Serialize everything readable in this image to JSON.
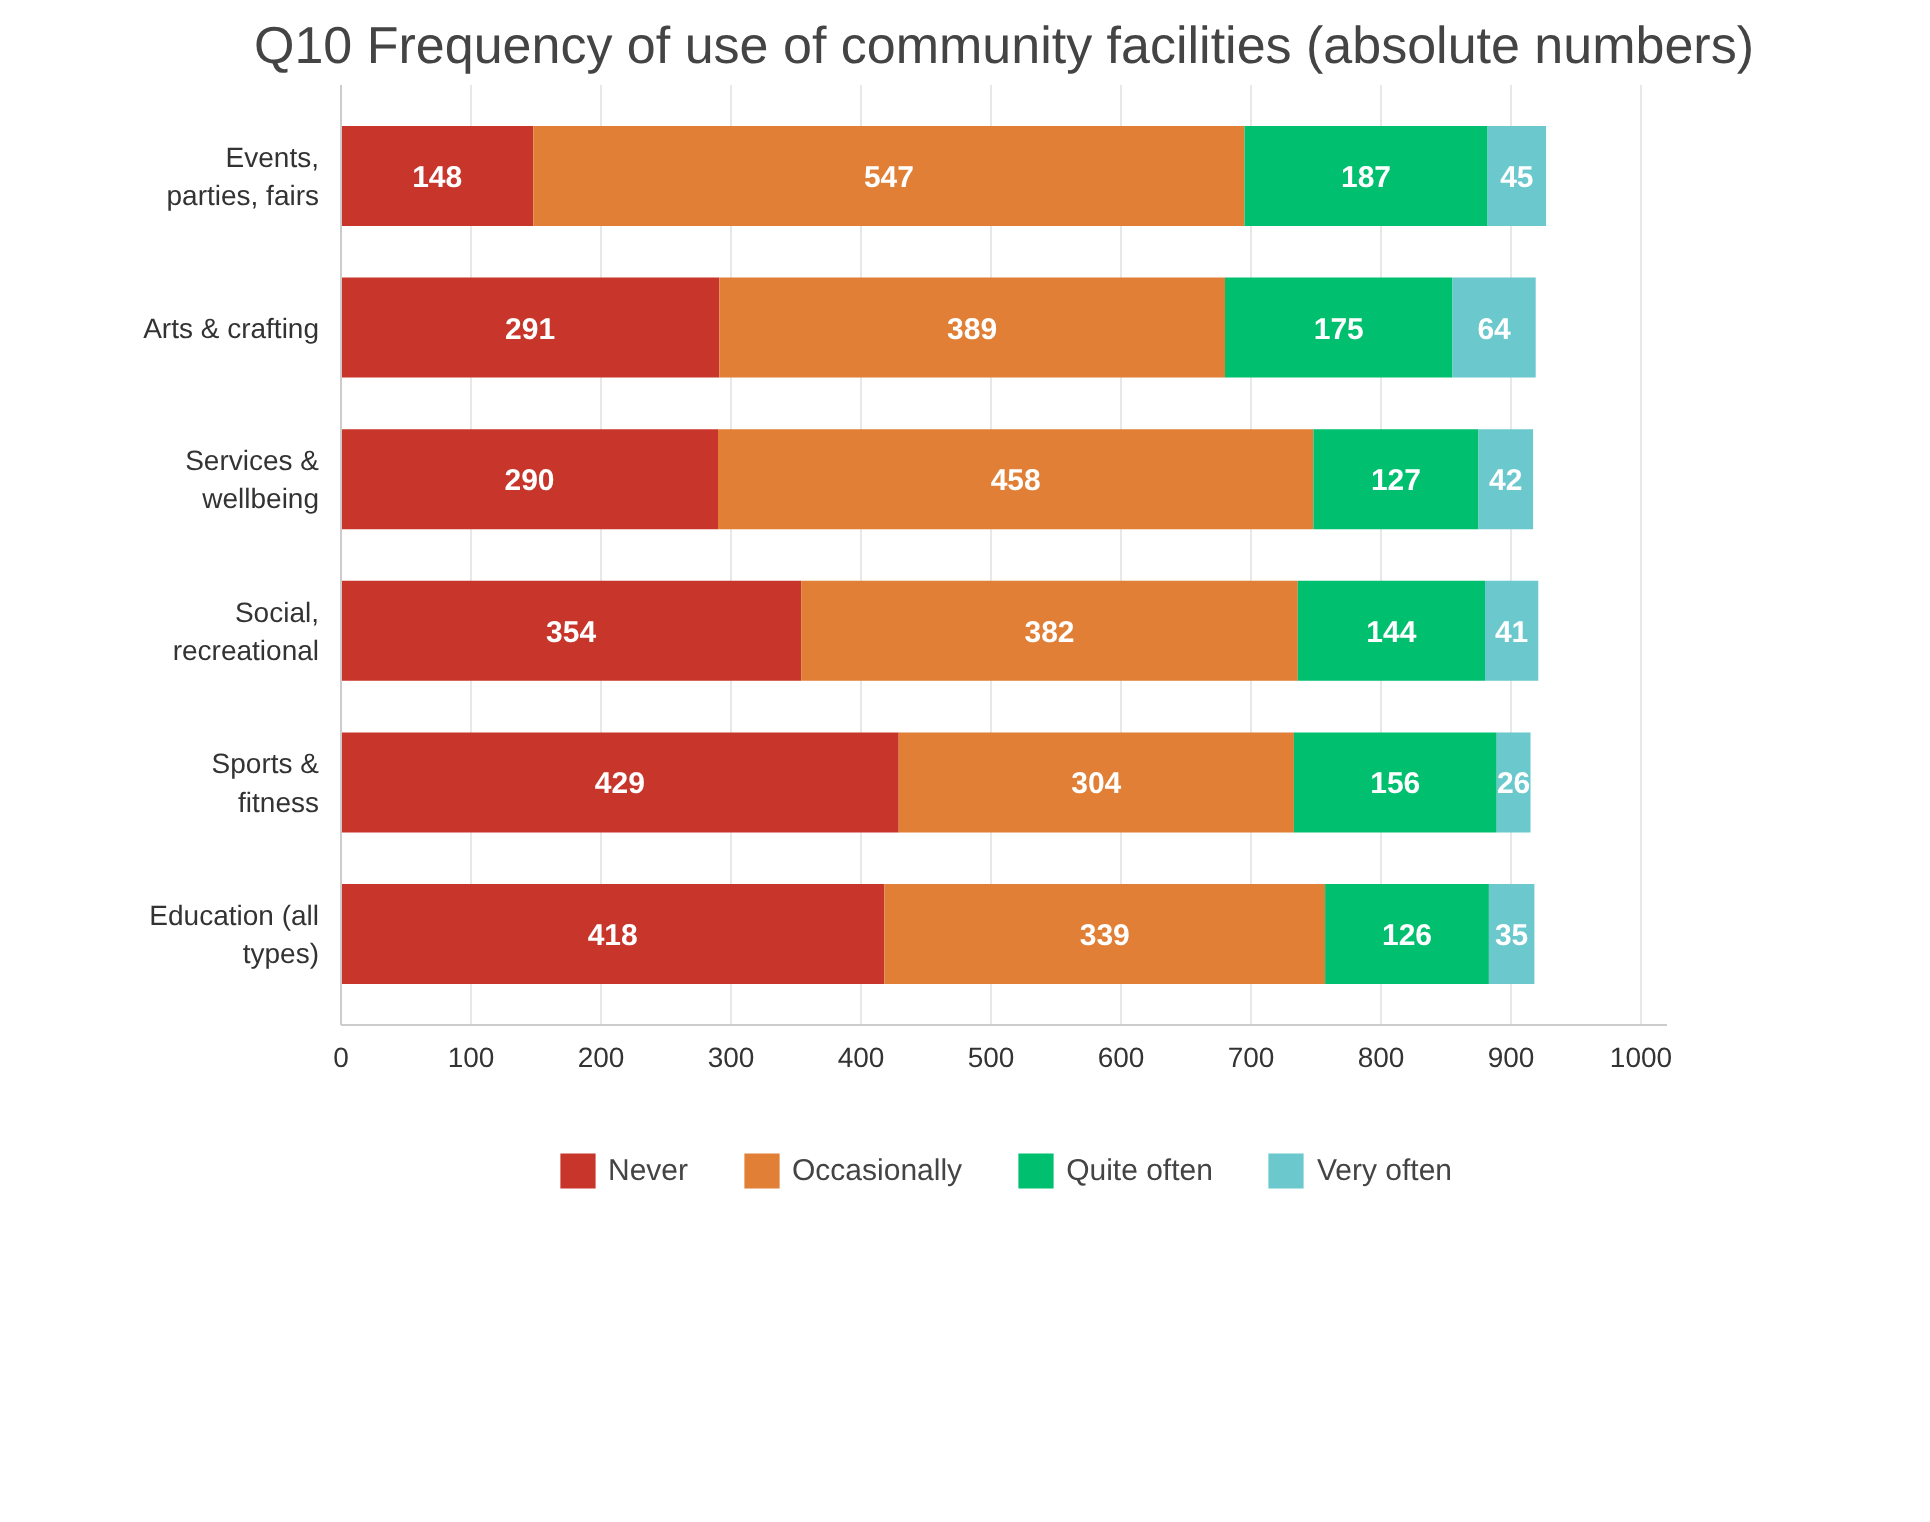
{
  "chart_data": {
    "type": "bar",
    "orientation": "horizontal",
    "stacked": true,
    "title": "Q10 Frequency of use of community facilities (absolute numbers)",
    "categories": [
      "Events,\nparties, fairs",
      "Arts & crafting",
      "Services &\nwellbeing",
      "Social,\nrecreational",
      "Sports &\nfitness",
      "Education (all\ntypes)"
    ],
    "series": [
      {
        "name": "Never",
        "color": "#c8352b",
        "values": [
          148,
          291,
          290,
          354,
          429,
          418
        ]
      },
      {
        "name": "Occasionally",
        "color": "#e07f35",
        "values": [
          547,
          389,
          458,
          382,
          304,
          339
        ]
      },
      {
        "name": "Quite often",
        "color": "#00bf6f",
        "values": [
          187,
          175,
          127,
          144,
          156,
          126
        ]
      },
      {
        "name": "Very often",
        "color": "#6bc8cd",
        "values": [
          45,
          64,
          42,
          41,
          26,
          35
        ]
      }
    ],
    "xlim": [
      0,
      1020
    ],
    "xticks": [
      0,
      100,
      200,
      300,
      400,
      500,
      600,
      700,
      800,
      900,
      1000
    ],
    "grid": "x",
    "legend": "bottom",
    "data_labels": true
  }
}
